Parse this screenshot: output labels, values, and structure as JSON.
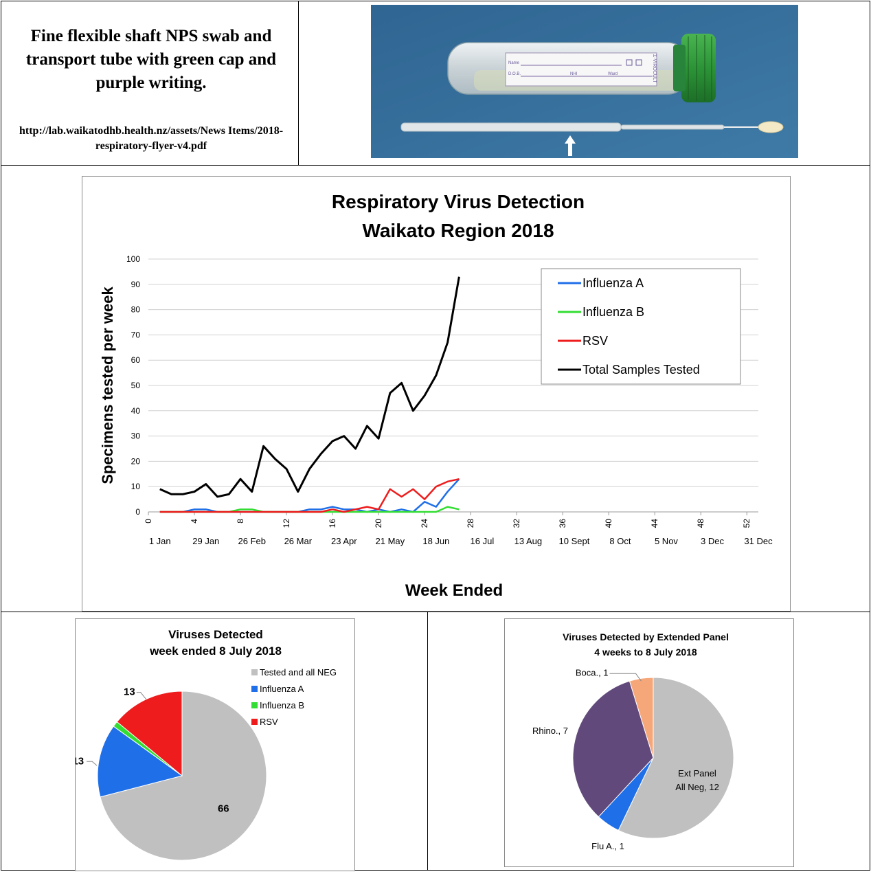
{
  "header": {
    "title": "Fine flexible shaft NPS swab and transport tube with green cap and purple writing.",
    "url": "http://lab.waikatodhb.health.nz/assets/News Items/2018-respiratory-flyer-v4.pdf"
  },
  "photo": {
    "label_name": "Name",
    "label_dob": "D.O.B.",
    "label_nhi": "NHI",
    "label_ward": "Ward",
    "brand": "Σ-VIROCULT"
  },
  "colors": {
    "influenza_a": "#1f6fe8",
    "influenza_b": "#33dd33",
    "rsv": "#ee1c1c",
    "total": "#000000",
    "neg": "#c0c0c0",
    "rhino": "#614a7b",
    "boca": "#f6a77a",
    "photo_bg": "#3a6f99",
    "cap": "#2e9e3a"
  },
  "chart_data": [
    {
      "type": "line",
      "title": "Respiratory Virus Detection",
      "subtitle": "Waikato Region 2018",
      "xlabel": "Week Ended",
      "ylabel": "Specimens tested per week",
      "xlim": [
        0,
        53
      ],
      "ylim": [
        0,
        100
      ],
      "yticks": [
        0,
        10,
        20,
        30,
        40,
        50,
        60,
        70,
        80,
        90,
        100
      ],
      "xticks": [
        0,
        4,
        8,
        12,
        16,
        20,
        24,
        28,
        32,
        36,
        40,
        44,
        48,
        52
      ],
      "date_labels": [
        {
          "week": 1,
          "label": "1 Jan"
        },
        {
          "week": 5,
          "label": "29 Jan"
        },
        {
          "week": 9,
          "label": "26 Feb"
        },
        {
          "week": 13,
          "label": "26 Mar"
        },
        {
          "week": 17,
          "label": "23 Apr"
        },
        {
          "week": 21,
          "label": "21 May"
        },
        {
          "week": 25,
          "label": "18 Jun"
        },
        {
          "week": 29,
          "label": "16 Jul"
        },
        {
          "week": 33,
          "label": "13 Aug"
        },
        {
          "week": 37,
          "label": "10 Sept"
        },
        {
          "week": 41,
          "label": "8 Oct"
        },
        {
          "week": 45,
          "label": "5 Nov"
        },
        {
          "week": 49,
          "label": "3 Dec"
        },
        {
          "week": 53,
          "label": "31 Dec"
        }
      ],
      "grid": true,
      "legend_position": "top-right",
      "x": [
        1,
        2,
        3,
        4,
        5,
        6,
        7,
        8,
        9,
        10,
        11,
        12,
        13,
        14,
        15,
        16,
        17,
        18,
        19,
        20,
        21,
        22,
        23,
        24,
        25,
        26,
        27
      ],
      "series": [
        {
          "name": "Influenza A",
          "color_key": "influenza_a",
          "values": [
            0,
            0,
            0,
            1,
            1,
            0,
            0,
            0,
            0,
            0,
            0,
            0,
            0,
            1,
            1,
            2,
            1,
            1,
            0,
            1,
            0,
            1,
            0,
            4,
            2,
            8,
            13
          ]
        },
        {
          "name": "Influenza B",
          "color_key": "influenza_b",
          "values": [
            0,
            0,
            0,
            0,
            0,
            0,
            0,
            1,
            1,
            0,
            0,
            0,
            0,
            0,
            0,
            0,
            0,
            0,
            0,
            0,
            0,
            0,
            0,
            0,
            0,
            2,
            1
          ]
        },
        {
          "name": "RSV",
          "color_key": "rsv",
          "values": [
            0,
            0,
            0,
            0,
            0,
            0,
            0,
            0,
            0,
            0,
            0,
            0,
            0,
            0,
            0,
            1,
            0,
            1,
            2,
            1,
            9,
            6,
            9,
            5,
            10,
            12,
            13
          ]
        },
        {
          "name": "Total Samples Tested",
          "color_key": "total",
          "values": [
            9,
            7,
            7,
            8,
            11,
            6,
            7,
            13,
            8,
            26,
            21,
            17,
            8,
            17,
            23,
            28,
            30,
            25,
            34,
            29,
            47,
            51,
            40,
            46,
            54,
            67,
            93
          ]
        }
      ]
    },
    {
      "type": "pie",
      "title": "Viruses Detected",
      "subtitle": "week ended 8 July 2018",
      "legend_position": "top-right",
      "slices": [
        {
          "name": "Tested and all NEG",
          "value": 66,
          "color_key": "neg",
          "label": "66"
        },
        {
          "name": "Influenza A",
          "value": 13,
          "color_key": "influenza_a",
          "label": "13"
        },
        {
          "name": "Influenza B",
          "value": 1,
          "color_key": "influenza_b",
          "label": ""
        },
        {
          "name": "RSV",
          "value": 13,
          "color_key": "rsv",
          "label": "13"
        }
      ]
    },
    {
      "type": "pie",
      "title": "Viruses Detected by Extended Panel",
      "subtitle": "4 weeks to 8 July 2018",
      "slices": [
        {
          "name": "Ext Panel All Neg",
          "value": 12,
          "color_key": "neg",
          "label_line1": "Ext Panel",
          "label_line2": "All Neg, 12"
        },
        {
          "name": "Flu A.",
          "value": 1,
          "color_key": "influenza_a",
          "label_line1": "Flu A., 1"
        },
        {
          "name": "Rhino.",
          "value": 7,
          "color_key": "rhino",
          "label_line1": "Rhino., 7"
        },
        {
          "name": "Boca.",
          "value": 1,
          "color_key": "boca",
          "label_line1": "Boca., 1"
        }
      ]
    }
  ]
}
